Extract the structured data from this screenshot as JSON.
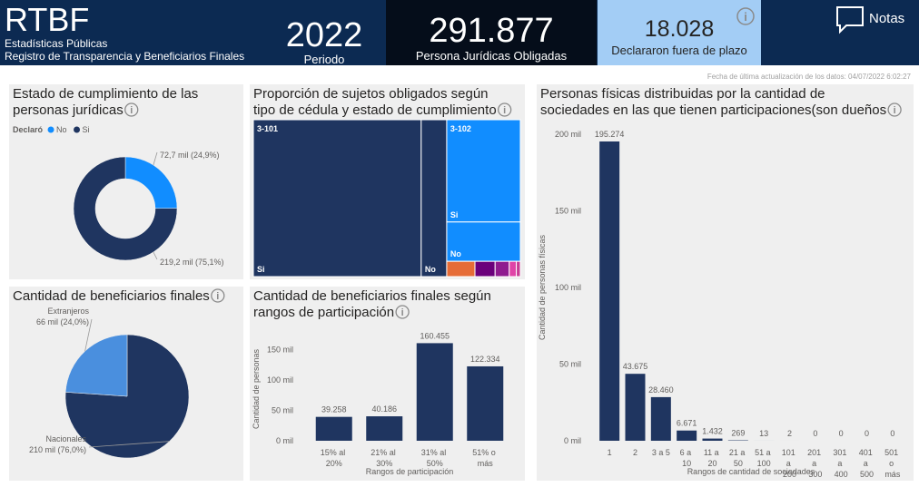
{
  "header": {
    "title": "RTBF",
    "subtitle": [
      "Estadísticas Públicas",
      "Registro de Transparencia y Beneficiarios Finales"
    ]
  },
  "kpis": [
    {
      "value": "2022",
      "label": "Periodo"
    },
    {
      "value": "291.877",
      "label": "Persona Jurídicas Obligadas"
    },
    {
      "value": "18.028",
      "label": "Declararon fuera de plazo"
    }
  ],
  "notes_button": "Notas",
  "update_note": "Fecha de última actualización de los datos: 04/07/2022 6:02:27",
  "chart_data": [
    {
      "type": "donut",
      "title": "Estado de cumplimiento de las personas jurídicas",
      "legend_title": "Declaró",
      "categories": [
        "No",
        "Si"
      ],
      "values": [
        72700,
        219200
      ],
      "value_labels": [
        "72,7 mil (24,9%)",
        "219,2 mil (75,1%)"
      ],
      "colors": [
        "#118dff",
        "#1f3560"
      ]
    },
    {
      "type": "treemap",
      "title": "Proporción de sujetos obligados según tipo de cédula y estado de cumplimiento",
      "groups": [
        {
          "name": "3-101",
          "items": [
            {
              "name": "Si",
              "value": 171000,
              "color": "#1f3560"
            },
            {
              "name": "No",
              "value": 26000,
              "color": "#1f3560"
            }
          ]
        },
        {
          "name": "3-102",
          "items": [
            {
              "name": "Si",
              "value": 48900,
              "color": "#118dff"
            },
            {
              "name": "No",
              "value": 18800,
              "color": "#118dff"
            },
            {
              "name": null,
              "value": 2800,
              "color": "#e66c37"
            },
            {
              "name": null,
              "value": 2000,
              "color": "#6b007b"
            },
            {
              "name": null,
              "value": 1400,
              "color": "#8f1b8f"
            },
            {
              "name": null,
              "value": 700,
              "color": "#e044a7"
            },
            {
              "name": null,
              "value": 400,
              "color": "#c83d95"
            }
          ]
        }
      ]
    },
    {
      "type": "bar",
      "title": "Personas físicas distribuidas por la cantidad de sociedades en las que tienen participaciones(son dueños",
      "categories": [
        "1",
        "2",
        "3 a 5",
        "6 a 10",
        "11 a 20",
        "21 a 50",
        "51 a 100",
        "101 a 200",
        "201 a 300",
        "301 a 400",
        "401 a 500",
        "501 o más"
      ],
      "values": [
        195274,
        43675,
        28460,
        6671,
        1432,
        269,
        13,
        2,
        0,
        0,
        0,
        0
      ],
      "value_labels": [
        "195.274",
        "43.675",
        "28.460",
        "6.671",
        "1.432",
        "269",
        "13",
        "2",
        "0",
        "0",
        "0",
        "0"
      ],
      "color": "#1f3560",
      "ylim": [
        0,
        200000
      ],
      "yticks": [
        {
          "value": 0,
          "label": "0 mil"
        },
        {
          "value": 50000,
          "label": "50 mil"
        },
        {
          "value": 100000,
          "label": "100 mil"
        },
        {
          "value": 150000,
          "label": "150 mil"
        },
        {
          "value": 200000,
          "label": "200 mil"
        }
      ],
      "xlabel": "Rangos de cantidad de sociedades",
      "ylabel": "Cantidad de personas físicas",
      "grid": false
    },
    {
      "type": "pie",
      "title": "Cantidad de beneficiarios finales",
      "categories": [
        "Nacionales",
        "Extranjeros"
      ],
      "values": [
        210000,
        66000
      ],
      "value_labels": [
        "210 mil (76,0%)",
        "66 mil (24,0%)"
      ],
      "colors": [
        "#1f3560",
        "#4a8fde"
      ]
    },
    {
      "type": "bar",
      "title": "Cantidad de beneficiarios finales según rangos de participación",
      "categories": [
        "15% al 20%",
        "21% al 30%",
        "31% al 50%",
        "51% o más"
      ],
      "values": [
        39258,
        40186,
        160455,
        122334
      ],
      "value_labels": [
        "39.258",
        "40.186",
        "160.455",
        "122.334"
      ],
      "color": "#1f3560",
      "ylim": [
        0,
        170000
      ],
      "yticks": [
        {
          "value": 0,
          "label": "0 mil"
        },
        {
          "value": 50000,
          "label": "50 mil"
        },
        {
          "value": 100000,
          "label": "100 mil"
        },
        {
          "value": 150000,
          "label": "150 mil"
        }
      ],
      "xlabel": "Rangos de participación",
      "ylabel": "Cantidad de personas",
      "grid": false
    }
  ]
}
